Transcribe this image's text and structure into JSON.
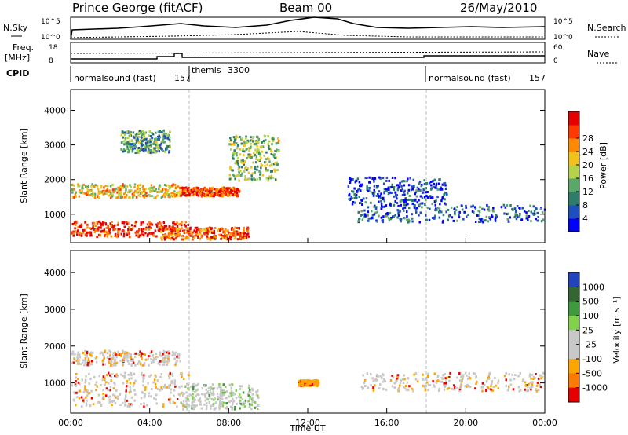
{
  "header": {
    "site": "Prince George (fitACF)",
    "beam": "Beam 00",
    "date": "26/May/2010"
  },
  "top_panel": {
    "left_label": "N.Sky",
    "left_ticks": [
      "10^5",
      "10^0"
    ],
    "right_ticks": [
      "10^5",
      "10^0"
    ],
    "right_label": "N.Search"
  },
  "freq_panel": {
    "left_label_1": "Freq.",
    "left_label_2": "[MHz]",
    "left_ticks": [
      "18",
      "8"
    ],
    "right_ticks": [
      "60",
      "0"
    ],
    "right_label": "Nave"
  },
  "cpid_panel": {
    "label": "CPID",
    "segments": [
      {
        "name": "normalsound (fast)",
        "id": "157",
        "start_hour": 0.0
      },
      {
        "name": "themis",
        "id": "3300",
        "start_hour": 6.0
      },
      {
        "name": "normalsound (fast)",
        "id": "157",
        "start_hour": 18.0
      }
    ]
  },
  "chart_data": [
    {
      "type": "heatmap",
      "title": "Power",
      "ylabel": "Slant Range [km]",
      "xlabel": "Time UT",
      "xlim": [
        0,
        24
      ],
      "ylim": [
        180,
        4600
      ],
      "xticks": [
        "00:00",
        "04:00",
        "08:00",
        "12:00",
        "16:00",
        "20:00",
        "00:00"
      ],
      "yticks": [
        1000,
        2000,
        3000,
        4000
      ],
      "colorbar": {
        "label": "Power [dB]",
        "ticks": [
          4,
          8,
          12,
          16,
          20,
          24,
          28
        ],
        "colors": [
          "#0000ff",
          "#1f4fbf",
          "#2e7d6a",
          "#5aa76a",
          "#b5d24a",
          "#f2c21a",
          "#ff8a00",
          "#ff3a00",
          "#e60000"
        ]
      },
      "regions": [
        {
          "t0": 0.0,
          "t1": 6.0,
          "r0": 380,
          "r1": 820,
          "level": 0.9
        },
        {
          "t0": 4.5,
          "t1": 9.0,
          "r0": 300,
          "r1": 650,
          "level": 0.8
        },
        {
          "t0": 0.0,
          "t1": 5.5,
          "r0": 1500,
          "r1": 1900,
          "level": 0.6
        },
        {
          "t0": 5.5,
          "t1": 8.5,
          "r0": 1550,
          "r1": 1800,
          "level": 0.85
        },
        {
          "t0": 8.0,
          "t1": 10.5,
          "r0": 2000,
          "r1": 3300,
          "level": 0.45
        },
        {
          "t0": 2.5,
          "t1": 5.0,
          "r0": 2800,
          "r1": 3450,
          "level": 0.35
        },
        {
          "t0": 14.5,
          "t1": 24.0,
          "r0": 800,
          "r1": 1300,
          "level": 0.2
        },
        {
          "t0": 14.0,
          "t1": 19.0,
          "r0": 1300,
          "r1": 2100,
          "level": 0.15
        }
      ]
    },
    {
      "type": "heatmap",
      "title": "Velocity",
      "ylabel": "Slant Range [km]",
      "xlabel": "Time UT",
      "xlim": [
        0,
        24
      ],
      "ylim": [
        180,
        4600
      ],
      "xticks": [
        "00:00",
        "04:00",
        "08:00",
        "12:00",
        "16:00",
        "20:00",
        "00:00"
      ],
      "yticks": [
        1000,
        2000,
        3000,
        4000
      ],
      "colorbar": {
        "label": "Velocity [m s⁻¹]",
        "ticks": [
          1000,
          500,
          100,
          25,
          -25,
          -100,
          -500,
          -1000
        ],
        "colors": [
          "#2244bb",
          "#336633",
          "#3f9a3f",
          "#7fd24a",
          "#c8c8c8",
          "#c8c8c8",
          "#ffa500",
          "#ff7a00",
          "#e60000"
        ]
      },
      "regions": [
        {
          "t0": 0.0,
          "t1": 6.0,
          "r0": 380,
          "r1": 1300,
          "v": 0
        },
        {
          "t0": 0.0,
          "t1": 5.5,
          "r0": 1500,
          "r1": 1900,
          "v": 0
        },
        {
          "t0": 5.5,
          "t1": 9.5,
          "r0": 300,
          "r1": 1000,
          "v": 150
        },
        {
          "t0": 11.5,
          "t1": 12.5,
          "r0": 950,
          "r1": 1100,
          "v": -100
        },
        {
          "t0": 14.5,
          "t1": 24.0,
          "r0": 800,
          "r1": 1300,
          "v": 0
        }
      ]
    }
  ],
  "xaxis_title": "Time UT"
}
